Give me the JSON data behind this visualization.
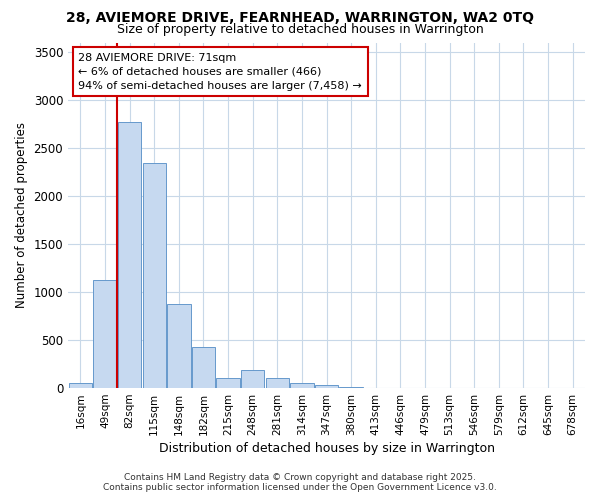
{
  "title1": "28, AVIEMORE DRIVE, FEARNHEAD, WARRINGTON, WA2 0TQ",
  "title2": "Size of property relative to detached houses in Warrington",
  "xlabel": "Distribution of detached houses by size in Warrington",
  "ylabel": "Number of detached properties",
  "categories": [
    "16sqm",
    "49sqm",
    "82sqm",
    "115sqm",
    "148sqm",
    "182sqm",
    "215sqm",
    "248sqm",
    "281sqm",
    "314sqm",
    "347sqm",
    "380sqm",
    "413sqm",
    "446sqm",
    "479sqm",
    "513sqm",
    "546sqm",
    "579sqm",
    "612sqm",
    "645sqm",
    "678sqm"
  ],
  "values": [
    50,
    1130,
    2770,
    2340,
    880,
    430,
    100,
    190,
    100,
    50,
    30,
    10,
    5,
    2,
    1,
    0,
    0,
    0,
    0,
    0,
    0
  ],
  "bar_color": "#c6d9f0",
  "bar_edge_color": "#6699cc",
  "background_color": "#ffffff",
  "grid_color": "#c8d8e8",
  "vline_color": "#cc0000",
  "annotation_box_text": "28 AVIEMORE DRIVE: 71sqm\n← 6% of detached houses are smaller (466)\n94% of semi-detached houses are larger (7,458) →",
  "annotation_box_color": "#cc0000",
  "footer_line1": "Contains HM Land Registry data © Crown copyright and database right 2025.",
  "footer_line2": "Contains public sector information licensed under the Open Government Licence v3.0.",
  "ylim": [
    0,
    3600
  ],
  "yticks": [
    0,
    500,
    1000,
    1500,
    2000,
    2500,
    3000,
    3500
  ]
}
